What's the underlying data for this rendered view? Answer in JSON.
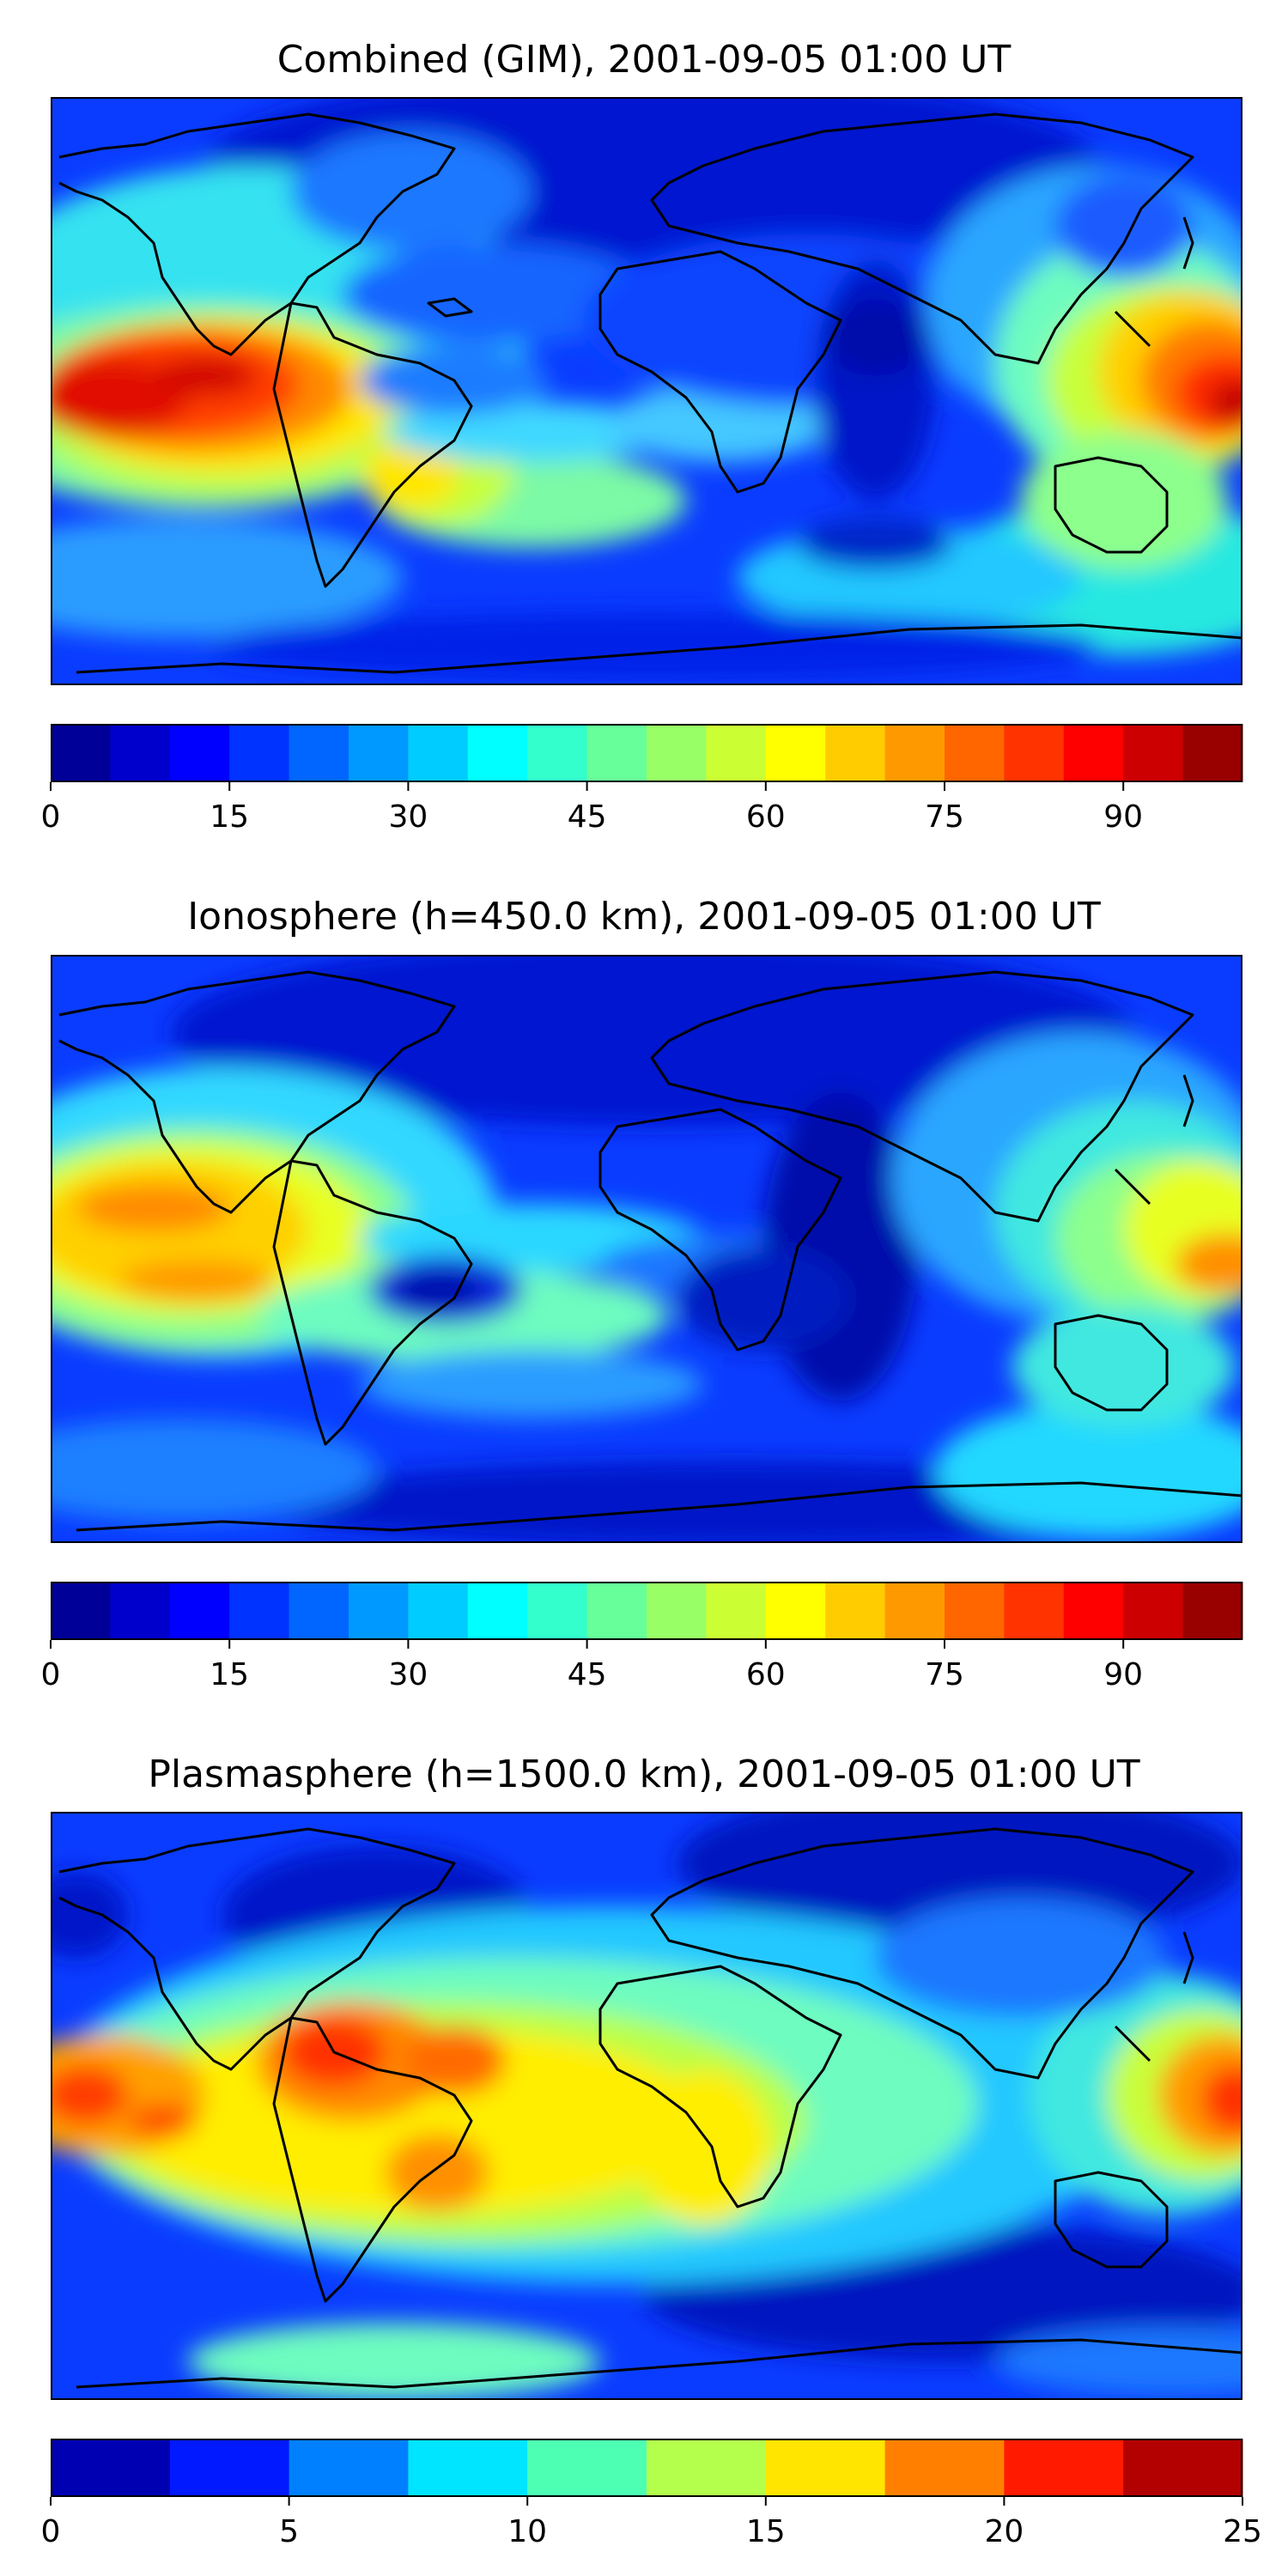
{
  "panels": [
    {
      "title": "Combined (GIM), 2001-09-05 01:00 UT",
      "colorbar": {
        "range": [
          0,
          100
        ],
        "levels": 20,
        "tick_values": [
          0,
          15,
          30,
          45,
          60,
          75,
          90
        ],
        "tick_labels": [
          "0",
          "15",
          "30",
          "45",
          "60",
          "75",
          "90"
        ]
      }
    },
    {
      "title": "Ionosphere  (h=450.0 km), 2001-09-05 01:00 UT",
      "colorbar": {
        "range": [
          0,
          100
        ],
        "levels": 20,
        "tick_values": [
          0,
          15,
          30,
          45,
          60,
          75,
          90
        ],
        "tick_labels": [
          "0",
          "15",
          "30",
          "45",
          "60",
          "75",
          "90"
        ]
      }
    },
    {
      "title": "Plasmasphere (h=1500.0 km), 2001-09-05 01:00 UT",
      "colorbar": {
        "range": [
          0,
          25
        ],
        "levels": 10,
        "tick_values": [
          0,
          5,
          10,
          15,
          20,
          25
        ],
        "tick_labels": [
          "0",
          "5",
          "10",
          "15",
          "20",
          "25"
        ]
      }
    }
  ],
  "colormap": "jet"
}
